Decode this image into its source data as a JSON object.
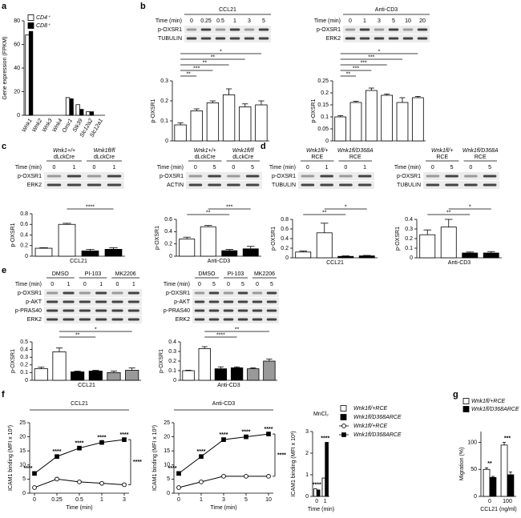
{
  "chart_data": [
    {
      "type": "bar",
      "panel": "a",
      "ylabel": "Gene expression (FPKM)",
      "categories": [
        "Wnk1",
        "Wnk2",
        "Wnk3",
        "Wnk4",
        "Oxsr1",
        "Stk39",
        "Slc12a2",
        "Slc12a1"
      ],
      "italic_categories": true,
      "series": [
        {
          "name": "CD4⁺",
          "color": "#ffffff",
          "values": [
            68,
            0,
            0,
            0,
            15,
            9,
            3,
            0
          ]
        },
        {
          "name": "CD8⁺",
          "color": "#000000",
          "values": [
            71,
            0,
            0,
            0,
            14,
            5,
            3,
            0
          ]
        }
      ],
      "ylim": [
        0,
        80
      ],
      "yticks": [
        0,
        20,
        40,
        60,
        80
      ],
      "legend": "upper left"
    },
    {
      "type": "bar",
      "panel": "b",
      "ylabel": "p-OXSR1",
      "color": "#ffffff",
      "values": [
        0.08,
        0.15,
        0.19,
        0.23,
        0.17,
        0.18
      ],
      "errors": [
        0.01,
        0.01,
        0.01,
        0.03,
        0.015,
        0.02
      ],
      "ylim": [
        0,
        0.3
      ],
      "yticks": [
        0,
        0.1,
        0.2,
        0.3
      ],
      "brackets": [
        {
          "from": 0,
          "to": 1,
          "label": "**"
        },
        {
          "from": 0,
          "to": 2,
          "label": "***"
        },
        {
          "from": 0,
          "to": 3,
          "label": "**"
        },
        {
          "from": 0,
          "to": 4,
          "label": "**"
        },
        {
          "from": 0,
          "to": 5,
          "label": "*"
        }
      ]
    },
    {
      "type": "bar",
      "ylabel": "p-OXSR1",
      "color": "#ffffff",
      "values": [
        0.1,
        0.16,
        0.21,
        0.19,
        0.16,
        0.18
      ],
      "errors": [
        0.005,
        0.005,
        0.01,
        0.005,
        0.02,
        0.005
      ],
      "ylim": [
        0,
        0.25
      ],
      "yticks": [
        0,
        0.05,
        0.1,
        0.15,
        0.2,
        0.25
      ],
      "brackets": [
        {
          "from": 0,
          "to": 1,
          "label": "**"
        },
        {
          "from": 0,
          "to": 2,
          "label": "***"
        },
        {
          "from": 0,
          "to": 3,
          "label": "***"
        },
        {
          "from": 0,
          "to": 4,
          "label": "***"
        },
        {
          "from": 0,
          "to": 5,
          "label": "*"
        }
      ]
    },
    {
      "type": "bar",
      "panel": "c",
      "ylabel": "p-OXSR1",
      "xlabel": "CCL21",
      "colors": [
        "#ffffff",
        "#ffffff",
        "#000000",
        "#000000"
      ],
      "values": [
        0.15,
        0.6,
        0.1,
        0.13
      ],
      "errors": [
        0.01,
        0.02,
        0.03,
        0.03
      ],
      "ylim": [
        0,
        0.8
      ],
      "yticks": [
        0,
        0.2,
        0.4,
        0.6,
        0.8
      ],
      "brackets": [
        {
          "from": 1,
          "to": 3,
          "label": "****"
        }
      ]
    },
    {
      "type": "bar",
      "ylabel": "p-OXSR1",
      "xlabel": "Anti-CD3",
      "colors": [
        "#ffffff",
        "#ffffff",
        "#000000",
        "#000000"
      ],
      "values": [
        0.28,
        0.48,
        0.09,
        0.12
      ],
      "errors": [
        0.03,
        0.02,
        0.02,
        0.04
      ],
      "ylim": [
        0,
        0.6
      ],
      "yticks": [
        0,
        0.2,
        0.4,
        0.6
      ],
      "brackets": [
        {
          "from": 0,
          "to": 2,
          "label": "**"
        },
        {
          "from": 1,
          "to": 3,
          "label": "***"
        }
      ]
    },
    {
      "type": "bar",
      "panel": "d",
      "ylabel": "p-OXSR1",
      "xlabel": "CCL21",
      "colors": [
        "#ffffff",
        "#ffffff",
        "#000000",
        "#000000"
      ],
      "values": [
        0.12,
        0.52,
        0.03,
        0.04
      ],
      "errors": [
        0.02,
        0.2,
        0.01,
        0.01
      ],
      "ylim": [
        0,
        0.8
      ],
      "yticks": [
        0,
        0.2,
        0.4,
        0.6,
        0.8
      ],
      "brackets": [
        {
          "from": 0,
          "to": 2,
          "label": "**"
        },
        {
          "from": 1,
          "to": 3,
          "label": "*"
        }
      ]
    },
    {
      "type": "bar",
      "ylabel": "p-OXSR1",
      "xlabel": "Anti-CD3",
      "colors": [
        "#ffffff",
        "#ffffff",
        "#000000",
        "#000000"
      ],
      "values": [
        0.24,
        0.32,
        0.05,
        0.05
      ],
      "errors": [
        0.05,
        0.08,
        0.01,
        0.015
      ],
      "ylim": [
        0,
        0.4
      ],
      "yticks": [
        0,
        0.1,
        0.2,
        0.3,
        0.4
      ],
      "brackets": [
        {
          "from": 0,
          "to": 2,
          "label": "**"
        },
        {
          "from": 1,
          "to": 3,
          "label": "*"
        }
      ]
    },
    {
      "type": "bar",
      "panel": "e",
      "ylabel": "p-OXSR1",
      "xlabel": "CCL21",
      "colors": [
        "#ffffff",
        "#ffffff",
        "#000000",
        "#000000",
        "#999999",
        "#999999"
      ],
      "values": [
        0.15,
        0.37,
        0.11,
        0.12,
        0.1,
        0.13
      ],
      "errors": [
        0.02,
        0.05,
        0.01,
        0.01,
        0.02,
        0.03
      ],
      "ylim": [
        0,
        0.5
      ],
      "yticks": [
        0,
        0.1,
        0.2,
        0.3,
        0.4,
        0.5
      ],
      "brackets": [
        {
          "from": 1,
          "to": 3,
          "label": "**"
        },
        {
          "from": 1,
          "to": 5,
          "label": "*"
        }
      ]
    },
    {
      "type": "bar",
      "ylabel": "p-OXSR1",
      "xlabel": "Anti-CD3",
      "colors": [
        "#ffffff",
        "#ffffff",
        "#000000",
        "#000000",
        "#999999",
        "#999999"
      ],
      "values": [
        0.1,
        0.33,
        0.12,
        0.13,
        0.12,
        0.2
      ],
      "errors": [
        0.005,
        0.02,
        0.02,
        0.01,
        0.01,
        0.02
      ],
      "ylim": [
        0,
        0.4
      ],
      "yticks": [
        0,
        0.1,
        0.2,
        0.3,
        0.4
      ],
      "brackets": [
        {
          "from": 1,
          "to": 3,
          "label": "****"
        },
        {
          "from": 1,
          "to": 5,
          "label": "**"
        }
      ]
    },
    {
      "type": "line",
      "panel": "f",
      "title": "CCL21",
      "xlabel": "Time (min)",
      "ylabel": "ICAM1 binding (MFI x 10³)",
      "categories": [
        "0",
        "0.25",
        "0.5",
        "1",
        "3"
      ],
      "series": [
        {
          "name": "Wnk1fl/+RCE",
          "color": "#000000",
          "marker": "circle-open",
          "values": [
            2,
            5,
            4,
            3.5,
            3
          ]
        },
        {
          "name": "Wnk1fl/D368ARCE",
          "color": "#000000",
          "marker": "square-filled",
          "values": [
            7,
            13,
            16,
            18,
            19
          ]
        }
      ],
      "ylim": [
        0,
        25
      ],
      "yticks": [
        0,
        5,
        10,
        15,
        20,
        25
      ],
      "annotations": [
        "****",
        "****",
        "****",
        "****",
        "****"
      ],
      "side_label": "****"
    },
    {
      "type": "line",
      "title": "Anti-CD3",
      "xlabel": "Time (min)",
      "ylabel": "ICAM1 binding (MFI x 10³)",
      "categories": [
        "0",
        "1",
        "3",
        "5",
        "10"
      ],
      "series": [
        {
          "color": "#000000",
          "marker": "circle-open",
          "values": [
            2,
            4,
            6,
            6,
            6
          ]
        },
        {
          "color": "#000000",
          "marker": "square-filled",
          "values": [
            7,
            13,
            19,
            20,
            21
          ]
        }
      ],
      "ylim": [
        0,
        25
      ],
      "yticks": [
        0,
        5,
        10,
        15,
        20,
        25
      ],
      "annotations": [
        "****",
        "****",
        "****",
        "****",
        "****"
      ],
      "side_label": "****"
    },
    {
      "type": "bar",
      "title": "MnCl₂",
      "xlabel": "Time (min)",
      "ylabel": "ICAM1 binding (MFI x 10³)",
      "categories": [
        "0",
        "1"
      ],
      "series": [
        {
          "name": "Wnk1fl/+RCE",
          "color": "#ffffff",
          "values": [
            0.35,
            0.85
          ]
        },
        {
          "name": "Wnk1fl/D368ARCE",
          "color": "#000000",
          "values": [
            0.3,
            2.5
          ]
        }
      ],
      "ylim": [
        0,
        3
      ],
      "yticks": [
        0,
        1,
        2,
        3
      ],
      "annotations": [
        "****",
        "****"
      ]
    },
    {
      "type": "bar",
      "panel": "g",
      "xlabel": "CCL21 (ng/ml)",
      "ylabel": "Migration (%)",
      "categories": [
        "0",
        "100"
      ],
      "series": [
        {
          "name": "Wnk1fl/+RCE",
          "color": "#ffffff",
          "values": [
            50,
            95
          ],
          "errors": [
            3,
            5
          ]
        },
        {
          "name": "Wnk1fl/D368ARCE",
          "color": "#000000",
          "values": [
            35,
            40
          ],
          "errors": [
            2,
            5
          ]
        }
      ],
      "ylim": [
        0,
        120
      ],
      "yticks": [
        0,
        50,
        100
      ],
      "legend": "top",
      "annotations": [
        "**",
        "***"
      ]
    }
  ],
  "blots": [
    {
      "title": "CCL21",
      "time_label": "Time (min)",
      "times": [
        "0",
        "0.25",
        "0.5",
        "1",
        "3",
        "5"
      ],
      "bands": [
        "p-OXSR1",
        "TUBULIN"
      ]
    },
    {
      "title": "Anti-CD3",
      "time_label": "Time (min)",
      "times": [
        "0",
        "1",
        "3",
        "5",
        "10",
        "20"
      ],
      "bands": [
        "p-OXSR1",
        "ERK2"
      ]
    },
    {
      "groups": [
        [
          "Wnk1+/+",
          "dLckCre"
        ],
        [
          "Wnk1fl/fl",
          "dLckCre"
        ]
      ],
      "time_label": "Time (min)",
      "times": [
        "0",
        "1",
        "0",
        "1"
      ],
      "bands": [
        "p-OXSR1",
        "ERK2"
      ]
    },
    {
      "groups": [
        [
          "Wnk1+/+",
          "dLckCre"
        ],
        [
          "Wnk1fl/fl",
          "dLckCre"
        ]
      ],
      "time_label": "Time (min)",
      "times": [
        "0",
        "5",
        "0",
        "5"
      ],
      "bands": [
        "p-OXSR1",
        "ACTIN"
      ]
    },
    {
      "groups": [
        [
          "Wnk1fl/+",
          "RCE"
        ],
        [
          "Wnk1fl/D368A",
          "RCE"
        ]
      ],
      "time_label": "Time (min)",
      "times": [
        "0",
        "1",
        "0",
        "1"
      ],
      "bands": [
        "p-OXSR1",
        "TUBULIN"
      ]
    },
    {
      "groups": [
        [
          "Wnk1fl/+",
          "RCE"
        ],
        [
          "Wnk1fl/D368A",
          "RCE"
        ]
      ],
      "time_label": "Time (min)",
      "times": [
        "0",
        "5",
        "0",
        "5"
      ],
      "bands": [
        "p-OXSR1",
        "TUBULIN"
      ]
    },
    {
      "groups": [
        [
          "DMSO"
        ],
        [
          "PI-103"
        ],
        [
          "MK2206"
        ]
      ],
      "time_label": "Time (min)",
      "times": [
        "0",
        "1",
        "0",
        "1",
        "0",
        "1"
      ],
      "bands": [
        "p-OXSR1",
        "p-AKT",
        "p-PRAS40",
        "ERK2"
      ]
    },
    {
      "groups": [
        [
          "DMSO"
        ],
        [
          "PI-103"
        ],
        [
          "MK2206"
        ]
      ],
      "time_label": "Time (min)",
      "times": [
        "0",
        "5",
        "0",
        "5",
        "0",
        "5"
      ],
      "bands": [
        "p-OXSR1",
        "p-AKT",
        "p-PRAS40",
        "ERK2"
      ]
    }
  ]
}
